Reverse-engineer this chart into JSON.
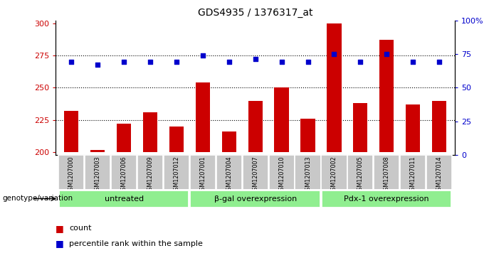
{
  "title": "GDS4935 / 1376317_at",
  "samples": [
    "GSM1207000",
    "GSM1207003",
    "GSM1207006",
    "GSM1207009",
    "GSM1207012",
    "GSM1207001",
    "GSM1207004",
    "GSM1207007",
    "GSM1207010",
    "GSM1207013",
    "GSM1207002",
    "GSM1207005",
    "GSM1207008",
    "GSM1207011",
    "GSM1207014"
  ],
  "counts": [
    232,
    202,
    222,
    231,
    220,
    254,
    216,
    240,
    250,
    226,
    300,
    238,
    287,
    237,
    240
  ],
  "percentiles": [
    70,
    68,
    70,
    70,
    70,
    75,
    70,
    72,
    70,
    70,
    76,
    70,
    76,
    70,
    70
  ],
  "groups": [
    {
      "label": "untreated",
      "start": 0,
      "end": 5
    },
    {
      "label": "β-gal overexpression",
      "start": 5,
      "end": 10
    },
    {
      "label": "Pdx-1 overexpression",
      "start": 10,
      "end": 15
    }
  ],
  "bar_color": "#cc0000",
  "dot_color": "#0000cc",
  "group_bg_color": "#90ee90",
  "sample_bg_color": "#c8c8c8",
  "ylim_left": [
    198,
    302
  ],
  "ylim_right": [
    0,
    100
  ],
  "yticks_left": [
    200,
    225,
    250,
    275,
    300
  ],
  "yticks_right": [
    0,
    25,
    50,
    75,
    100
  ],
  "ytick_labels_right": [
    "0",
    "25",
    "50",
    "75",
    "100%"
  ],
  "hlines": [
    225,
    250,
    275
  ],
  "genotype_label": "genotype/variation",
  "legend_count": "count",
  "legend_percentile": "percentile rank within the sample"
}
